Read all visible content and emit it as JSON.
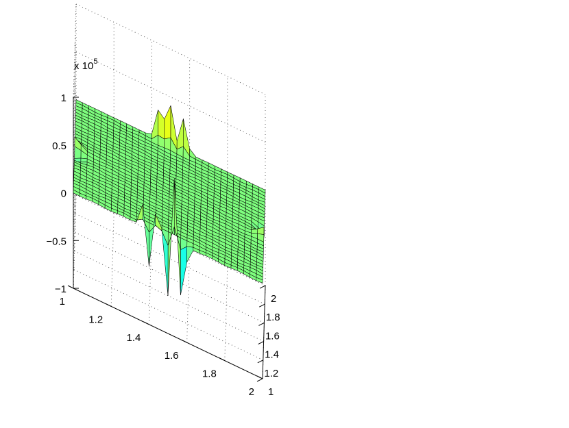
{
  "chart_data": {
    "type": "surface",
    "title": "",
    "xlabel": "",
    "ylabel": "",
    "zlabel": "",
    "x_range": [
      1,
      2
    ],
    "y_range": [
      1,
      2
    ],
    "z_range": [
      -100000,
      100000
    ],
    "z_multiplier_label": "x 10",
    "z_multiplier_exponent": "5",
    "x_ticks": [
      "1",
      "1.2",
      "1.4",
      "1.6",
      "1.8",
      "2"
    ],
    "y_ticks": [
      "1",
      "1.2",
      "1.4",
      "1.6",
      "1.8",
      "2"
    ],
    "z_ticks": [
      "−1",
      "−0.5",
      "0",
      "0.5",
      "1"
    ],
    "x_tick_values": [
      1,
      1.2,
      1.4,
      1.6,
      1.8,
      2
    ],
    "y_tick_values": [
      1,
      1.2,
      1.4,
      1.6,
      1.8,
      2
    ],
    "z_tick_values": [
      -1,
      -0.5,
      0,
      0.5,
      1
    ],
    "grid": true,
    "colormap": "jet",
    "surface_base_color": "#7fff7f",
    "mesh_color": "#000000",
    "notable_features": [
      {
        "x": 1.5,
        "y": 1.0,
        "description": "cluster of large oscillating spikes at front edge",
        "z_min": -0.95,
        "z_max": 0.8
      },
      {
        "x": 1.5,
        "y": 2.0,
        "description": "cluster of spikes at back edge",
        "z_min": -0.3,
        "z_max": 0.65
      },
      {
        "x": 1.0,
        "y": 1.5,
        "description": "small ripples at left edge",
        "z_min": -0.1,
        "z_max": 0.1
      },
      {
        "x": 2.0,
        "y": 1.5,
        "description": "small ripples at right edge",
        "z_min": -0.1,
        "z_max": 0.1
      }
    ]
  }
}
